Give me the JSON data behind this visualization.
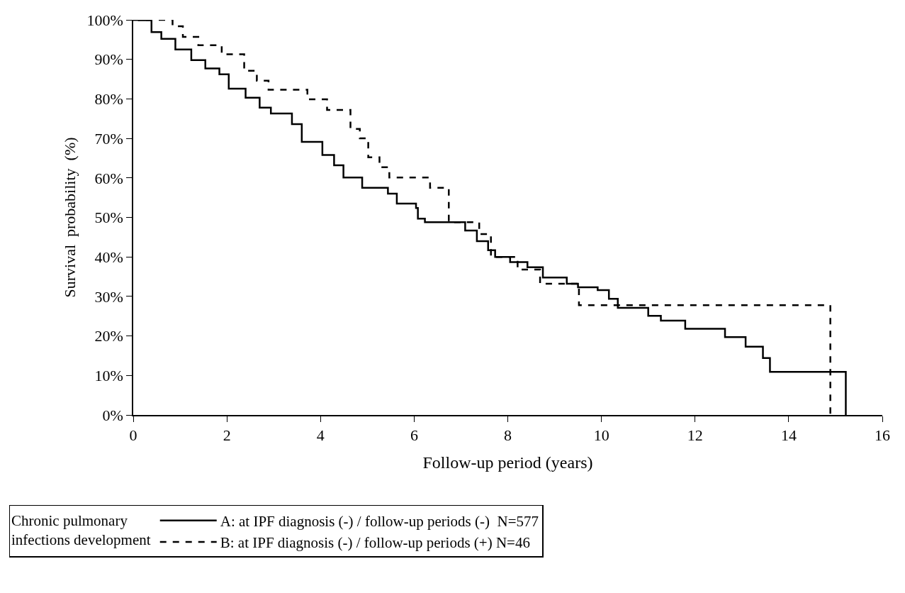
{
  "chart_data": {
    "type": "step",
    "xlabel": "Follow-up period (years)",
    "ylabel": "Survival  probability  (%)",
    "legend_title": "Chronic pulmonary infections development",
    "xlim": [
      0,
      16
    ],
    "xticks": [
      0,
      2,
      4,
      6,
      8,
      10,
      12,
      14,
      16
    ],
    "ylim": [
      0,
      100
    ],
    "yticks": [
      {
        "value": 0,
        "label": "0%"
      },
      {
        "value": 10,
        "label": "10%"
      },
      {
        "value": 20,
        "label": "20%"
      },
      {
        "value": 30,
        "label": "30%"
      },
      {
        "value": 40,
        "label": "40%"
      },
      {
        "value": 50,
        "label": "50%"
      },
      {
        "value": 60,
        "label": "60%"
      },
      {
        "value": 70,
        "label": "70%"
      },
      {
        "value": 80,
        "label": "80%"
      },
      {
        "value": 90,
        "label": "90%"
      },
      {
        "value": 100,
        "label": "100%"
      }
    ],
    "grid": false,
    "legend": "bottom",
    "marker": "none",
    "series": [
      {
        "name": "A: at IPF diagnosis (-) / follow-up periods (-)  N=577",
        "color": "#000000",
        "line_style": "solid",
        "x": [
          0,
          0.12,
          0.39,
          0.6,
          0.9,
          1.24,
          1.54,
          1.84,
          2.04,
          2.4,
          2.7,
          2.94,
          3.39,
          3.6,
          4.04,
          4.29,
          4.49,
          4.89,
          5.44,
          5.63,
          6.04,
          6.08,
          6.23,
          6.68,
          7.09,
          7.34,
          7.58,
          7.73,
          8.05,
          8.42,
          8.75,
          9.26,
          9.5,
          9.92,
          10.16,
          10.35,
          11.0,
          11.27,
          11.79,
          12.64,
          13.08,
          13.45,
          13.6,
          15.22
        ],
        "values": [
          100,
          99.9,
          96.9,
          95.2,
          92.5,
          89.8,
          87.7,
          86.2,
          82.6,
          80.3,
          77.8,
          76.3,
          73.6,
          69.1,
          65.8,
          63.2,
          60.1,
          57.5,
          56.0,
          53.5,
          52.4,
          49.7,
          48.8,
          48.8,
          46.7,
          44.0,
          41.7,
          40.0,
          38.7,
          37.4,
          34.8,
          33.2,
          32.3,
          31.6,
          29.4,
          27.1,
          25.1,
          23.9,
          21.8,
          19.7,
          17.3,
          14.4,
          10.9,
          0
        ]
      },
      {
        "name": "B: at IPF diagnosis (-) / follow-up periods (+) N=46",
        "color": "#000000",
        "line_style": "dashed",
        "x": [
          0,
          0.84,
          1.06,
          1.39,
          1.89,
          2.37,
          2.64,
          2.89,
          3.72,
          4.14,
          4.64,
          4.84,
          5.02,
          5.26,
          5.47,
          6.34,
          6.74,
          7.39,
          7.64,
          8.21,
          8.69,
          9.52,
          14.89
        ],
        "values": [
          100,
          98.4,
          95.7,
          93.6,
          91.3,
          87.1,
          84.6,
          82.3,
          79.9,
          77.2,
          72.4,
          70.0,
          65.2,
          62.7,
          60.1,
          57.5,
          48.8,
          45.8,
          40.0,
          36.8,
          33.2,
          27.8,
          0
        ]
      }
    ]
  }
}
